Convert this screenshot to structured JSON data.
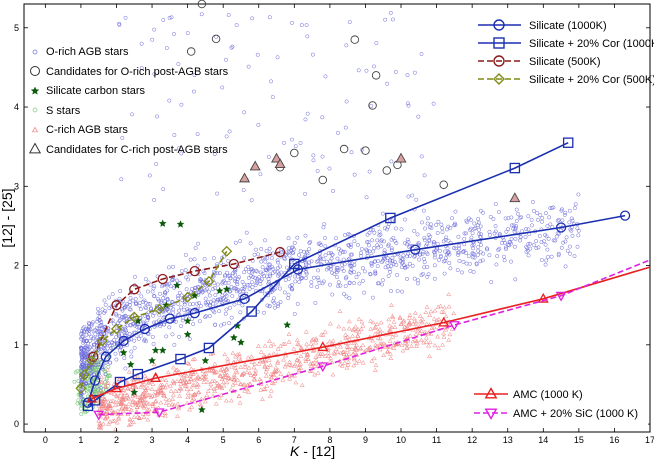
{
  "chart_data": {
    "type": "scatter",
    "xlabel_main": "K",
    "xlabel_rest": " - [12]",
    "ylabel": "[12] - [25]",
    "xlim": [
      -0.6,
      17
    ],
    "ylim": [
      -0.1,
      5.3
    ],
    "x_ticks": [
      0,
      1,
      2,
      3,
      4,
      5,
      6,
      7,
      8,
      9,
      10,
      11,
      12,
      13,
      14,
      15,
      16,
      17
    ],
    "y_ticks": [
      0,
      1,
      2,
      3,
      4,
      5
    ],
    "colors": {
      "orich": "#6b6bdb",
      "crich": "#f08080",
      "sstars": "#7cc87c",
      "silcarbon": "#0a5a0a",
      "candidate": "#444444",
      "candfill": "#d8a0a0",
      "silicate1000": "#1a2fb0",
      "silicate500": "#8b1a1a",
      "silcor500": "#7f8a12",
      "amc": "#e82020",
      "amcsic": "#e020e0"
    },
    "scatter_legend": [
      {
        "name": "O-rich AGB stars",
        "marker": "small-circle",
        "color": "#6b6bdb"
      },
      {
        "name": "Candidates for O-rich post-AGB stars",
        "marker": "big-circle",
        "color": "#333333"
      },
      {
        "name": "Silicate carbon stars",
        "marker": "star",
        "color": "#0a5a0a"
      },
      {
        "name": "S stars",
        "marker": "small-circle",
        "color": "#7cc87c"
      },
      {
        "name": "C-rich AGB stars",
        "marker": "small-triangle",
        "color": "#f08080"
      },
      {
        "name": "Candidates for C-rich post-AGB stars",
        "marker": "big-triangle",
        "color": "#333333"
      }
    ],
    "model_legend": [
      {
        "name": "Silicate (1000K)",
        "marker": "circle",
        "color": "#1a2fb0",
        "dash": false
      },
      {
        "name": "Silicate + 20% Cor (1000K)",
        "marker": "square",
        "color": "#1a2fb0",
        "dash": false
      },
      {
        "name": "Silicate (500K)",
        "marker": "circle",
        "color": "#8b1a1a",
        "dash": true
      },
      {
        "name": "Silicate + 20% Cor (500K)",
        "marker": "diamond",
        "color": "#7f8a12",
        "dash": true
      }
    ],
    "amc_legend": [
      {
        "name": "AMC (1000 K)",
        "marker": "triangle-up",
        "color": "#e82020",
        "dash": false
      },
      {
        "name": "AMC + 20% SiC (1000 K)",
        "marker": "triangle-down",
        "color": "#e020e0",
        "dash": true
      }
    ],
    "series": [
      {
        "name": "Silicate (1000K)",
        "marker": "circle",
        "dash": false,
        "color": "#1a2fb0",
        "x": [
          1.2,
          1.4,
          1.7,
          2.2,
          2.8,
          3.5,
          4.2,
          5.6,
          7.1,
          10.4,
          14.5,
          16.3
        ],
        "y": [
          0.27,
          0.55,
          0.85,
          1.05,
          1.2,
          1.33,
          1.4,
          1.58,
          1.95,
          2.2,
          2.48,
          2.63
        ]
      },
      {
        "name": "Silicate + 20% Cor (1000K)",
        "marker": "square",
        "dash": false,
        "color": "#1a2fb0",
        "x": [
          1.2,
          1.4,
          2.1,
          2.6,
          3.8,
          4.6,
          5.8,
          7.0,
          9.7,
          13.2,
          14.7
        ],
        "y": [
          0.23,
          0.3,
          0.53,
          0.63,
          0.82,
          0.96,
          1.42,
          2.02,
          2.6,
          3.23,
          3.55
        ]
      },
      {
        "name": "Silicate (500K)",
        "marker": "circle",
        "dash": true,
        "color": "#8b1a1a",
        "x": [
          1.35,
          2.0,
          2.5,
          3.3,
          4.2,
          5.3,
          6.6
        ],
        "y": [
          0.85,
          1.5,
          1.7,
          1.83,
          1.93,
          2.02,
          2.17
        ]
      },
      {
        "name": "Silicate + 20% Cor (500K)",
        "marker": "diamond",
        "dash": true,
        "color": "#7f8a12",
        "x": [
          1.0,
          1.1,
          1.3,
          1.6,
          2.0,
          2.5,
          3.2,
          4.0,
          4.6,
          5.1
        ],
        "y": [
          0.45,
          0.62,
          0.8,
          1.05,
          1.2,
          1.35,
          1.45,
          1.6,
          1.8,
          2.18
        ]
      },
      {
        "name": "AMC (1000 K)",
        "marker": "triangle-up",
        "dash": false,
        "color": "#e82020",
        "x": [
          1.3,
          2.0,
          3.1,
          7.8,
          11.2,
          14.0,
          17
        ],
        "y": [
          0.32,
          0.45,
          0.58,
          0.97,
          1.28,
          1.58,
          1.98
        ]
      },
      {
        "name": "AMC + 20% SiC (1000 K)",
        "marker": "triangle-down",
        "dash": true,
        "color": "#e020e0",
        "x": [
          1.5,
          3.2,
          7.8,
          11.5,
          14.5,
          17
        ],
        "y": [
          0.12,
          0.15,
          0.73,
          1.25,
          1.62,
          2.07
        ]
      }
    ],
    "orich_candidates": [
      {
        "x": 4.1,
        "y": 4.7
      },
      {
        "x": 4.4,
        "y": 5.3
      },
      {
        "x": 4.8,
        "y": 4.86
      },
      {
        "x": 6.6,
        "y": 3.24
      },
      {
        "x": 7.0,
        "y": 3.42
      },
      {
        "x": 7.8,
        "y": 3.08
      },
      {
        "x": 8.4,
        "y": 3.47
      },
      {
        "x": 9.0,
        "y": 3.45
      },
      {
        "x": 9.2,
        "y": 4.02
      },
      {
        "x": 9.3,
        "y": 4.4
      },
      {
        "x": 9.6,
        "y": 3.2
      },
      {
        "x": 9.9,
        "y": 3.27
      },
      {
        "x": 8.7,
        "y": 4.85
      },
      {
        "x": 11.2,
        "y": 3.02
      }
    ],
    "crich_candidates": [
      {
        "x": 5.6,
        "y": 3.1
      },
      {
        "x": 5.9,
        "y": 3.25
      },
      {
        "x": 6.5,
        "y": 3.35
      },
      {
        "x": 10.0,
        "y": 3.35
      },
      {
        "x": 13.2,
        "y": 2.85
      },
      {
        "x": 6.6,
        "y": 3.28
      }
    ],
    "silicate_carbon_stars": [
      {
        "x": 3.3,
        "y": 2.53
      },
      {
        "x": 3.8,
        "y": 2.52
      },
      {
        "x": 4.0,
        "y": 1.3
      },
      {
        "x": 4.2,
        "y": 1.62
      },
      {
        "x": 3.4,
        "y": 1.5
      },
      {
        "x": 3.1,
        "y": 0.93
      },
      {
        "x": 3.3,
        "y": 0.93
      },
      {
        "x": 3.0,
        "y": 0.8
      },
      {
        "x": 2.6,
        "y": 1.3
      },
      {
        "x": 2.2,
        "y": 0.9
      },
      {
        "x": 2.5,
        "y": 0.4
      },
      {
        "x": 2.4,
        "y": 0.75
      },
      {
        "x": 4.5,
        "y": 0.8
      },
      {
        "x": 4.4,
        "y": 0.18
      },
      {
        "x": 5.1,
        "y": 1.7
      },
      {
        "x": 6.8,
        "y": 1.25
      },
      {
        "x": 4.0,
        "y": 1.13
      },
      {
        "x": 5.3,
        "y": 1.09
      },
      {
        "x": 5.5,
        "y": 1.03
      },
      {
        "x": 4.9,
        "y": 1.68
      },
      {
        "x": 3.7,
        "y": 1.75
      },
      {
        "x": 5.4,
        "y": 1.24
      }
    ]
  }
}
